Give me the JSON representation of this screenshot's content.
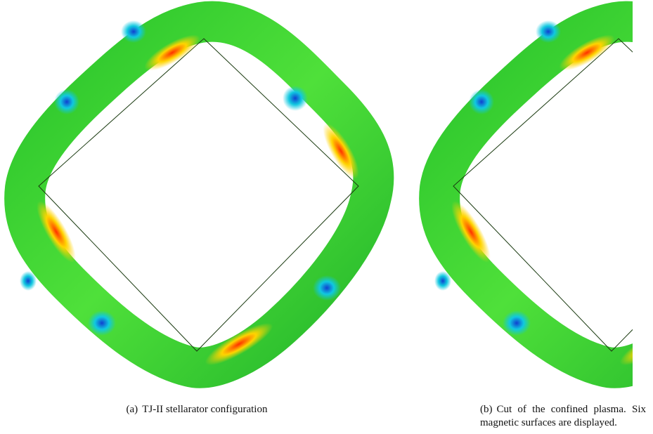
{
  "figures": [
    {
      "label": "(a)",
      "caption": "TJ-II stellarator configuration"
    },
    {
      "label": "(b)",
      "caption": "Cut of the confined plasma. Six magnetic surfaces are displayed."
    }
  ]
}
